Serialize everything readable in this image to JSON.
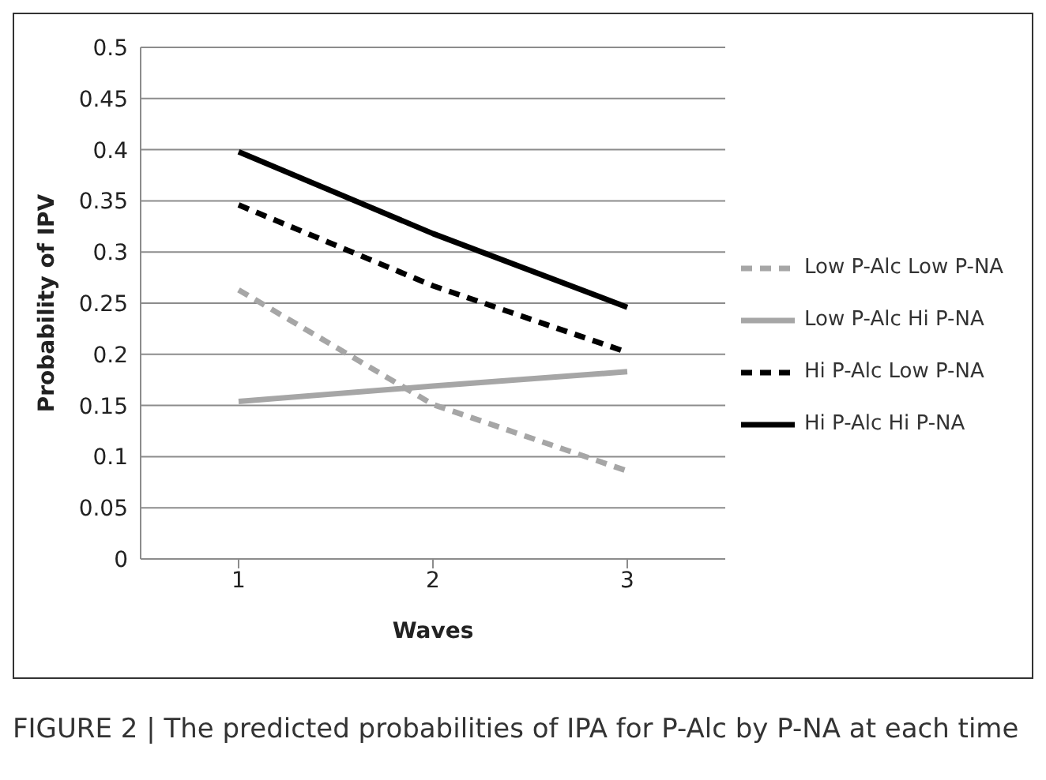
{
  "chart_data": {
    "type": "line",
    "xlabel": "Waves",
    "ylabel": "Probability of IPV",
    "categories": [
      "1",
      "2",
      "3"
    ],
    "series": [
      {
        "name": "Low P-Alc Low P-NA",
        "color": "#a6a6a6",
        "line_style": "dashed",
        "values": [
          0.263,
          0.151,
          0.086
        ]
      },
      {
        "name": "Low P-Alc Hi P-NA",
        "color": "#a6a6a6",
        "line_style": "solid",
        "values": [
          0.154,
          0.169,
          0.183
        ]
      },
      {
        "name": "Hi P-Alc Low P-NA",
        "color": "#000000",
        "line_style": "dashed",
        "values": [
          0.346,
          0.267,
          0.202
        ]
      },
      {
        "name": "Hi P-Alc Hi P-NA",
        "color": "#000000",
        "line_style": "solid",
        "values": [
          0.398,
          0.318,
          0.246
        ]
      }
    ],
    "ylim": [
      0,
      0.5
    ],
    "yticks": [
      0,
      0.05,
      0.1,
      0.15,
      0.2,
      0.25,
      0.3,
      0.35,
      0.4,
      0.45,
      0.5
    ],
    "grid": "y",
    "legend": "right",
    "marker": "none",
    "annotations": [
      "FIGURE 2 | The predicted probabilities of IPA for P-Alc by P-NA at each time"
    ]
  }
}
